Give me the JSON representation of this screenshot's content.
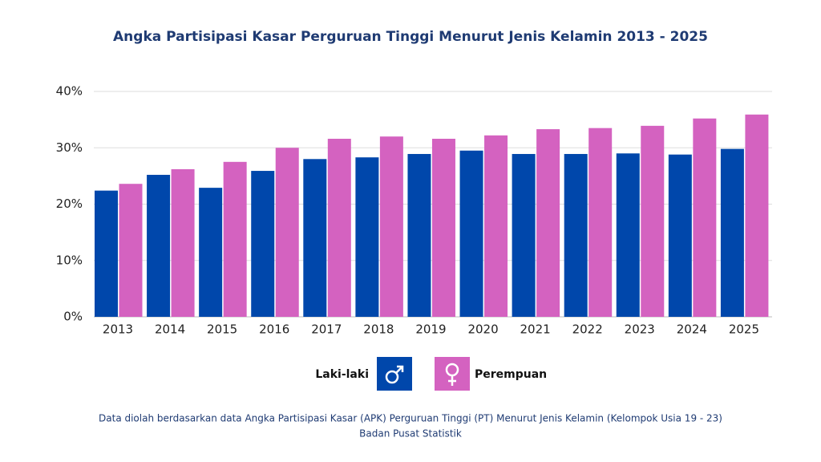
{
  "chart_data": {
    "type": "bar",
    "title": "Angka Partisipasi Kasar Perguruan Tinggi Menurut Jenis Kelamin 2013 - 2025",
    "categories": [
      "2013",
      "2014",
      "2015",
      "2016",
      "2017",
      "2018",
      "2019",
      "2020",
      "2021",
      "2022",
      "2023",
      "2024",
      "2025"
    ],
    "series": [
      {
        "name": "Laki-laki",
        "color": "#0047ab",
        "values": [
          22.4,
          25.2,
          22.9,
          25.9,
          28.0,
          28.3,
          28.9,
          29.5,
          28.9,
          28.9,
          29.0,
          28.8,
          29.8
        ]
      },
      {
        "name": "Perempuan",
        "color": "#d462c0",
        "values": [
          23.6,
          26.2,
          27.5,
          30.0,
          31.6,
          32.0,
          31.6,
          32.2,
          33.3,
          33.5,
          33.9,
          35.2,
          35.9
        ]
      }
    ],
    "ylim": [
      0,
      40
    ],
    "yticks": [
      {
        "value": 0,
        "label": "0%"
      },
      {
        "value": 10,
        "label": "10%"
      },
      {
        "value": 20,
        "label": "20%"
      },
      {
        "value": 30,
        "label": "30%"
      },
      {
        "value": 40,
        "label": "40%"
      }
    ],
    "grid": true,
    "legend": "bottom",
    "footnote": [
      "Data diolah berdasarkan data Angka Partisipasi Kasar (APK) Perguruan Tinggi (PT) Menurut Jenis Kelamin (Kelompok Usia 19 - 23)",
      "Badan Pusat Statistik"
    ]
  }
}
